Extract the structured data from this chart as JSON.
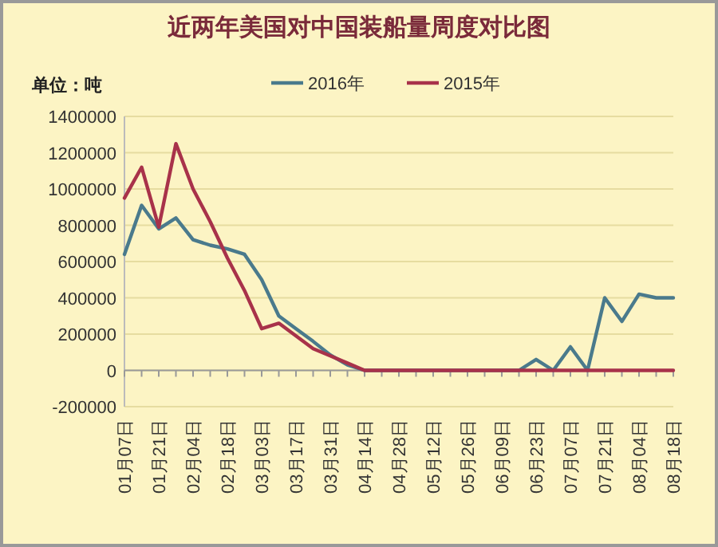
{
  "chart_data": {
    "type": "line",
    "title": "近两年美国对中国装船量周度对比图",
    "ylabel": "单位：吨",
    "categories": [
      "01月07日",
      null,
      "01月21日",
      null,
      "02月04日",
      null,
      "02月18日",
      null,
      "03月03日",
      null,
      "03月17日",
      null,
      "03月31日",
      null,
      "04月14日",
      null,
      "04月28日",
      null,
      "05月12日",
      null,
      "05月26日",
      null,
      "06月09日",
      null,
      "06月23日",
      null,
      "07月07日",
      null,
      "07月21日",
      null,
      "08月04日",
      null,
      "08月18日"
    ],
    "series": [
      {
        "name": "2016年",
        "color": "#4a7a8c",
        "values": [
          640000,
          910000,
          780000,
          840000,
          720000,
          690000,
          670000,
          640000,
          500000,
          300000,
          230000,
          160000,
          85000,
          30000,
          0,
          0,
          0,
          0,
          0,
          0,
          0,
          0,
          0,
          0,
          60000,
          0,
          130000,
          0,
          400000,
          270000,
          420000,
          400000,
          400000
        ]
      },
      {
        "name": "2015年",
        "color": "#a8324a",
        "values": [
          950000,
          1120000,
          790000,
          1250000,
          1000000,
          820000,
          620000,
          440000,
          230000,
          260000,
          190000,
          120000,
          80000,
          40000,
          0,
          0,
          0,
          0,
          0,
          0,
          0,
          0,
          0,
          0,
          0,
          0,
          0,
          0,
          0,
          0,
          0,
          0,
          0
        ]
      }
    ],
    "ylim": [
      -200000,
      1400000
    ],
    "yticks": [
      -200000,
      0,
      200000,
      400000,
      600000,
      800000,
      1000000,
      1200000,
      1400000
    ],
    "grid": "y",
    "legend": "top",
    "marker": "none",
    "line_style": "solid"
  }
}
